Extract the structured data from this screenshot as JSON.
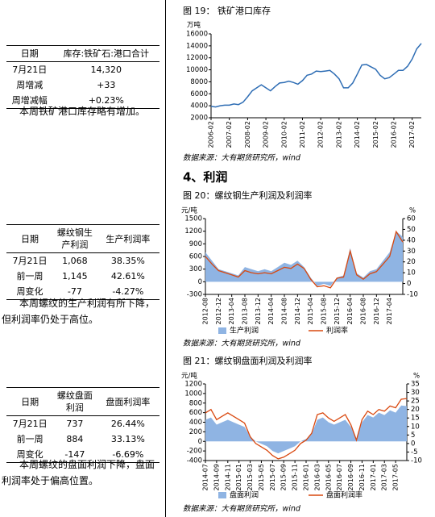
{
  "tables": [
    {
      "header": [
        "日期",
        "库存:铁矿石:港口合计"
      ],
      "rows": [
        [
          "7月21日",
          "14,320"
        ],
        [
          "周增减",
          "+33"
        ],
        [
          "周增减幅",
          "+0.23%"
        ]
      ],
      "note": "本周铁矿港口库存略有增加。"
    },
    {
      "header": [
        "日期",
        "螺纹钢生产利润",
        "生产利润率"
      ],
      "rows": [
        [
          "7月21日",
          "1,068",
          "38.35%"
        ],
        [
          "前一周",
          "1,145",
          "42.61%"
        ],
        [
          "周变化",
          "-77",
          "-4.27%"
        ]
      ],
      "note": "本周螺纹的生产利润有所下降，但利润率仍处于高位。"
    },
    {
      "header": [
        "日期",
        "螺纹盘面利润",
        "盘面利润率"
      ],
      "rows": [
        [
          "7月21日",
          "737",
          "26.44%"
        ],
        [
          "前一周",
          "884",
          "33.13%"
        ],
        [
          "周变化",
          "-147",
          "-6.69%"
        ]
      ],
      "note": "本周螺纹的盘面利润下降，盘面利润率处于偏高位置。"
    }
  ],
  "section_heading": "4、利润",
  "chart_data": [
    {
      "type": "line",
      "title": "图 19： 铁矿港口库存",
      "ylabel": "万吨",
      "source": "数据来源：大有期货研究所，wind",
      "categories": [
        "2006-02",
        null,
        null,
        null,
        "2007-02",
        null,
        null,
        null,
        "2008-02",
        null,
        null,
        null,
        "2009-02",
        null,
        null,
        null,
        "2010-02",
        null,
        null,
        null,
        "2011-02",
        null,
        null,
        null,
        "2012-02",
        null,
        null,
        null,
        "2013-02",
        null,
        null,
        null,
        "2014-02",
        null,
        null,
        null,
        "2015-02",
        null,
        null,
        null,
        "2016-02",
        null,
        null,
        null,
        "2017-02",
        null,
        null
      ],
      "values": [
        3900,
        3800,
        4000,
        4100,
        4100,
        4300,
        4200,
        4600,
        5500,
        6500,
        7000,
        7500,
        7000,
        6500,
        7200,
        7800,
        7900,
        8100,
        7900,
        7600,
        8200,
        9100,
        9300,
        9800,
        9700,
        9800,
        9900,
        9300,
        8500,
        7000,
        7000,
        7800,
        9300,
        10800,
        10900,
        10500,
        10100,
        9100,
        8500,
        8700,
        9300,
        9900,
        9900,
        10600,
        11800,
        13500,
        14400
      ],
      "color": "#2e6db4",
      "ylim": [
        2000,
        16000
      ],
      "yticks": [
        2000,
        4000,
        6000,
        8000,
        10000,
        12000,
        14000,
        16000
      ]
    },
    {
      "type": "combo",
      "title": "图 20：螺纹钢生产利润及利润率",
      "ylabel": "元/吨",
      "y2label": "%",
      "source": "数据来源：大有期货研究所，wind",
      "categories": [
        "2012-08",
        null,
        "2012-12",
        null,
        "2013-04",
        null,
        "2013-08",
        null,
        "2013-12",
        null,
        "2014-04",
        null,
        "2014-08",
        null,
        "2014-12",
        null,
        "2015-04",
        null,
        "2015-08",
        null,
        "2015-12",
        null,
        "2016-04",
        null,
        "2016-08",
        null,
        "2016-12",
        null,
        "2017-04",
        null,
        null
      ],
      "series": [
        {
          "name": "生产利润",
          "color": "#8fb4e3",
          "style": "area",
          "values": [
            700,
            500,
            300,
            250,
            200,
            150,
            350,
            300,
            250,
            300,
            250,
            350,
            450,
            400,
            500,
            350,
            100,
            -100,
            -50,
            -100,
            100,
            150,
            800,
            200,
            100,
            250,
            300,
            500,
            700,
            1200,
            1068
          ]
        },
        {
          "name": "利润率",
          "color": "#d9480f",
          "style": "line",
          "axis": "y2",
          "values": [
            25,
            18,
            12,
            10,
            8,
            6,
            12,
            10,
            9,
            10,
            9,
            12,
            15,
            14,
            18,
            14,
            4,
            -3,
            -2,
            -4,
            5,
            6,
            30,
            8,
            4,
            9,
            11,
            18,
            25,
            48,
            38.35
          ]
        }
      ],
      "ylim": [
        -300,
        1500
      ],
      "yticks": [
        -300,
        0,
        300,
        600,
        900,
        1200,
        1500
      ],
      "y2lim": [
        -10,
        60
      ],
      "y2ticks": [
        -10,
        0,
        10,
        20,
        30,
        40,
        50,
        60
      ]
    },
    {
      "type": "combo",
      "title": "图 21：螺纹钢盘面利润及利润率",
      "ylabel": "元/吨",
      "y2label": "%",
      "source": "数据来源：大有期货研究所，wind",
      "categories": [
        "2014-07",
        null,
        "2014-09",
        null,
        "2014-11",
        null,
        "2015-01",
        null,
        "2015-03",
        null,
        "2015-05",
        null,
        "2015-07",
        null,
        "2015-09",
        null,
        "2015-11",
        null,
        "2016-01",
        null,
        "2016-03",
        null,
        "2016-05",
        null,
        "2016-07",
        null,
        "2016-09",
        null,
        "2016-11",
        null,
        "2017-01",
        null,
        "2017-03",
        null,
        "2017-05",
        null,
        null
      ],
      "series": [
        {
          "name": "盘面利润",
          "color": "#8fb4e3",
          "style": "area",
          "values": [
            450,
            500,
            350,
            400,
            450,
            400,
            350,
            300,
            100,
            0,
            -50,
            -100,
            -200,
            -250,
            -200,
            -150,
            -100,
            0,
            50,
            150,
            450,
            500,
            400,
            350,
            400,
            450,
            300,
            50,
            400,
            550,
            500,
            600,
            550,
            650,
            600,
            750,
            737
          ]
        },
        {
          "name": "盘面利润率",
          "color": "#d9480f",
          "style": "line",
          "axis": "y2",
          "values": [
            18,
            20,
            14,
            16,
            18,
            16,
            14,
            12,
            4,
            0,
            -2,
            -4,
            -7,
            -9,
            -8,
            -6,
            -4,
            0,
            2,
            6,
            17,
            18,
            15,
            13,
            15,
            17,
            11,
            2,
            14,
            19,
            17,
            20,
            19,
            22,
            21,
            26,
            26.44
          ]
        }
      ],
      "ylim": [
        -400,
        1200
      ],
      "yticks": [
        -400,
        -200,
        0,
        200,
        400,
        600,
        800,
        1000,
        1200
      ],
      "y2lim": [
        -10,
        35
      ],
      "y2ticks": [
        -10,
        -5,
        0,
        5,
        10,
        15,
        20,
        25,
        30,
        35
      ]
    }
  ]
}
